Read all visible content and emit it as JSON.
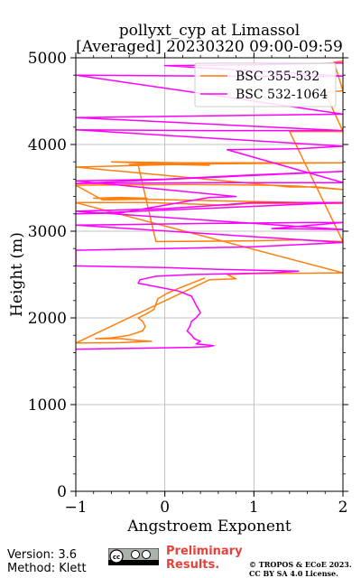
{
  "chart_data": {
    "type": "line",
    "title_line1": "pollyxt_cyp at Limassol",
    "title_line2": "[Averaged] 20230320 09:00-09:59",
    "xlabel": "Angstroem Exponent",
    "ylabel": "Height (m)",
    "xlim": [
      -1,
      2
    ],
    "ylim": [
      0,
      5000
    ],
    "x_ticks": [
      -1,
      0,
      1,
      2
    ],
    "x_tick_labels": [
      "−1",
      "0",
      "1",
      "2"
    ],
    "y_ticks": [
      0,
      1000,
      2000,
      3000,
      4000,
      5000
    ],
    "y_tick_labels": [
      "0",
      "1000",
      "2000",
      "3000",
      "4000",
      "5000"
    ],
    "grid": true,
    "legend_position": "top-right",
    "series": [
      {
        "name": "BSC 355-532",
        "color": "#ff7f0e",
        "points": [
          [
            0.45,
            2460
          ],
          [
            0.3,
            2400
          ],
          [
            0.15,
            2340
          ],
          [
            0.02,
            2280
          ],
          [
            -0.08,
            2220
          ],
          [
            -0.1,
            2160
          ],
          [
            -0.12,
            2100
          ],
          [
            -0.2,
            2050
          ],
          [
            -0.3,
            2000
          ],
          [
            -0.25,
            1960
          ],
          [
            -0.22,
            1900
          ],
          [
            -0.25,
            1850
          ],
          [
            -0.4,
            1800
          ],
          [
            -0.6,
            1770
          ],
          [
            -0.78,
            1760
          ],
          [
            -0.5,
            1760
          ],
          [
            -0.3,
            1740
          ],
          [
            -0.15,
            1730
          ],
          [
            -0.5,
            1715
          ],
          [
            -1.0,
            1710
          ],
          [
            -1.0,
            1710
          ],
          [
            0.5,
            2440
          ],
          [
            0.8,
            2450
          ],
          [
            0.7,
            2500
          ],
          [
            0.95,
            2510
          ],
          [
            2.0,
            2520
          ],
          [
            -1.0,
            3330
          ],
          [
            -0.2,
            3330
          ],
          [
            0.7,
            3300
          ],
          [
            0.95,
            3320
          ],
          [
            2.0,
            3320
          ],
          [
            -0.8,
            3380
          ],
          [
            -0.5,
            3390
          ],
          [
            -0.2,
            3380
          ],
          [
            -0.2,
            3370
          ],
          [
            -0.7,
            3360
          ],
          [
            -1.0,
            3530
          ],
          [
            0.3,
            3540
          ],
          [
            1.2,
            3530
          ],
          [
            1.5,
            3520
          ],
          [
            2.0,
            3480
          ],
          [
            1.7,
            3510
          ],
          [
            1.4,
            3510
          ],
          [
            -1.0,
            3740
          ],
          [
            0.1,
            3770
          ],
          [
            0.5,
            3760
          ],
          [
            -0.6,
            3800
          ],
          [
            0.2,
            3790
          ],
          [
            1.6,
            3790
          ],
          [
            2.0,
            3790
          ],
          [
            -0.4,
            3770
          ],
          [
            0.0,
            3780
          ],
          [
            -0.3,
            3760
          ],
          [
            -0.1,
            2880
          ],
          [
            1.0,
            2890
          ],
          [
            1.5,
            2900
          ],
          [
            2.0,
            2880
          ],
          [
            1.4,
            4150
          ],
          [
            2.0,
            4150
          ],
          [
            1.8,
            4600
          ],
          [
            2.0,
            4620
          ],
          [
            1.9,
            4950
          ],
          [
            2.0,
            4960
          ]
        ]
      },
      {
        "name": "BSC 532-1064",
        "color": "#ff00ff",
        "points": [
          [
            -1.0,
            1640
          ],
          [
            -0.3,
            1650
          ],
          [
            0.3,
            1660
          ],
          [
            0.5,
            1670
          ],
          [
            0.55,
            1680
          ],
          [
            0.35,
            1700
          ],
          [
            0.4,
            1730
          ],
          [
            0.33,
            1760
          ],
          [
            0.3,
            1800
          ],
          [
            0.25,
            1850
          ],
          [
            0.28,
            1900
          ],
          [
            0.3,
            1960
          ],
          [
            0.35,
            2000
          ],
          [
            0.4,
            2060
          ],
          [
            0.35,
            2150
          ],
          [
            0.3,
            2250
          ],
          [
            0.15,
            2310
          ],
          [
            -0.1,
            2360
          ],
          [
            -0.3,
            2400
          ],
          [
            -0.28,
            2440
          ],
          [
            -0.1,
            2480
          ],
          [
            0.3,
            2500
          ],
          [
            0.8,
            2510
          ],
          [
            1.2,
            2520
          ],
          [
            1.5,
            2540
          ],
          [
            0.6,
            2560
          ],
          [
            0.3,
            2570
          ],
          [
            0.0,
            2580
          ],
          [
            -1.0,
            2600
          ],
          [
            -1.0,
            2780
          ],
          [
            0.0,
            2800
          ],
          [
            1.0,
            2820
          ],
          [
            2.0,
            2870
          ],
          [
            -1.0,
            3070
          ],
          [
            0.5,
            3090
          ],
          [
            1.6,
            3100
          ],
          [
            2.0,
            3100
          ],
          [
            1.2,
            3030
          ],
          [
            2.0,
            3020
          ],
          [
            -1.0,
            3230
          ],
          [
            0.0,
            3260
          ],
          [
            0.6,
            3300
          ],
          [
            1.0,
            3330
          ],
          [
            2.0,
            3330
          ],
          [
            -1.0,
            3200
          ],
          [
            -0.5,
            3210
          ],
          [
            0.5,
            3390
          ],
          [
            0.8,
            3400
          ],
          [
            -1.0,
            3580
          ],
          [
            0.0,
            3600
          ],
          [
            1.0,
            3650
          ],
          [
            2.0,
            3690
          ],
          [
            -1.0,
            3550
          ],
          [
            0.5,
            3560
          ],
          [
            2.0,
            3560
          ],
          [
            0.7,
            3940
          ],
          [
            1.5,
            3950
          ],
          [
            2.0,
            3980
          ],
          [
            -1.0,
            4170
          ],
          [
            0.5,
            4160
          ],
          [
            2.0,
            4160
          ],
          [
            -1.0,
            4310
          ],
          [
            0.5,
            4330
          ],
          [
            2.0,
            4350
          ],
          [
            -1.0,
            4800
          ],
          [
            0.5,
            4790
          ],
          [
            1.5,
            4780
          ],
          [
            2.0,
            4790
          ],
          [
            0.0,
            4910
          ],
          [
            1.0,
            4920
          ],
          [
            2.0,
            4940
          ]
        ]
      }
    ]
  },
  "footer": {
    "version": "Version: 3.6",
    "method": "Method: Klett",
    "preliminary_line1": "Preliminary",
    "preliminary_line2": "Results.",
    "copyright_line1": "© TROPOS & ECoE 2023.",
    "copyright_line2": "CC BY SA 4.0 License."
  }
}
